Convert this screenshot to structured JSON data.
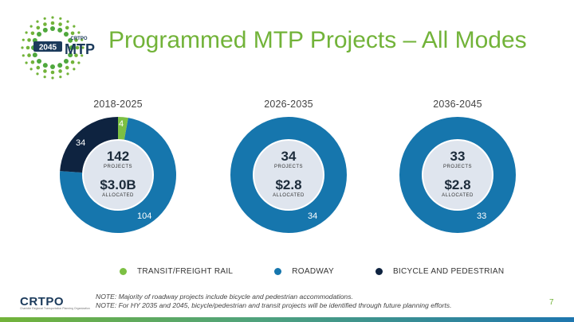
{
  "logo": {
    "year": "2045",
    "small": "CRTPO",
    "big": "MTP"
  },
  "title": "Programmed MTP Projects – All Modes",
  "colors": {
    "title": "#72b339",
    "transit": "#7cc043",
    "roadway": "#1676ad",
    "bike": "#0e2340",
    "center_disc": "#dfe5ee"
  },
  "charts": [
    {
      "period": "2018-2025",
      "projects": "142",
      "projects_label": "PROJECTS",
      "amount": "$3.0B",
      "amount_label": "ALLOCATED",
      "segments": [
        {
          "key": "transit",
          "value": 4,
          "label": "4"
        },
        {
          "key": "roadway",
          "value": 104,
          "label": "104"
        },
        {
          "key": "bike",
          "value": 34,
          "label": "34"
        }
      ]
    },
    {
      "period": "2026-2035",
      "projects": "34",
      "projects_label": "PROJECTS",
      "amount": "$2.8",
      "amount_label": "ALLOCATED",
      "segments": [
        {
          "key": "roadway",
          "value": 34,
          "label": "34"
        }
      ]
    },
    {
      "period": "2036-2045",
      "projects": "33",
      "projects_label": "PROJECTS",
      "amount": "$2.8",
      "amount_label": "ALLOCATED",
      "segments": [
        {
          "key": "roadway",
          "value": 33,
          "label": "33"
        }
      ]
    }
  ],
  "legend": [
    {
      "key": "transit",
      "label": "TRANSIT/FREIGHT RAIL"
    },
    {
      "key": "roadway",
      "label": "ROADWAY"
    },
    {
      "key": "bike",
      "label": "BICYCLE AND PEDESTRIAN"
    }
  ],
  "footer": {
    "logo_text": "CRTPO",
    "logo_sub": "Charlotte Regional Transportation Planning Organization",
    "note_line1": "NOTE: Majority of roadway projects include bicycle and pedestrian accommodations.",
    "note_line2": "NOTE: For HY 2035 and 2045, bicycle/pedestrian and transit projects will be identified through future planning efforts.",
    "page_number": "7"
  }
}
